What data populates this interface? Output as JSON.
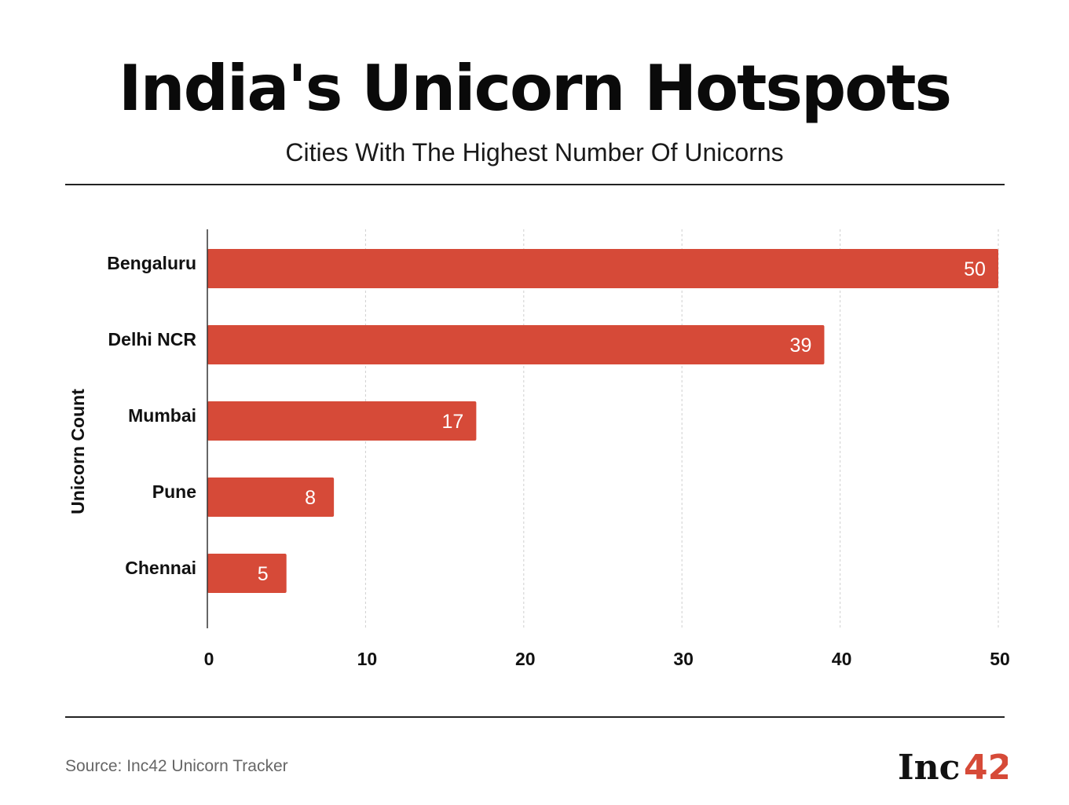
{
  "header": {
    "title": "India's Unicorn Hotspots",
    "subtitle": "Cities With The Highest Number Of Unicorns"
  },
  "footer": {
    "source": "Source: Inc42 Unicorn Tracker",
    "logo_text": "Inc42"
  },
  "chart_data": {
    "type": "bar",
    "orientation": "horizontal",
    "title": "India's Unicorn Hotspots",
    "subtitle": "Cities With The Highest Number Of Unicorns",
    "ylabel": "Unicorn Count",
    "xlabel": "",
    "categories": [
      "Bengaluru",
      "Delhi NCR",
      "Mumbai",
      "Pune",
      "Chennai"
    ],
    "values": [
      50,
      39,
      17,
      8,
      5
    ],
    "xlim": [
      0,
      50
    ],
    "xticks": [
      0,
      10,
      20,
      30,
      40,
      50
    ],
    "grid": "vertical-dashed",
    "bar_color": "#d64a38",
    "label_color": "#ffffff"
  }
}
